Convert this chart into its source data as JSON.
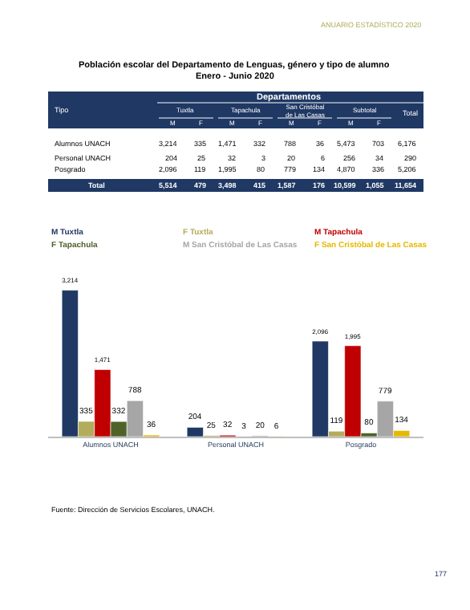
{
  "chart_data": [
    {
      "type": "other",
      "title": "Población escolar del Departamento de Lenguas, género y tipo de alumno",
      "subtitle": "Enero - Junio 2020",
      "annotations": [
        "Tipo",
        "Departamentos",
        "Tuxtla",
        "Tapachula",
        "San Cristóbal de Las Casas",
        "Subtotal",
        "Total"
      ],
      "categories": [
        "M",
        "F",
        "M",
        "F",
        "M",
        "F",
        "M",
        "F",
        null
      ],
      "y_categories": [
        "Alumnos UNACH",
        "Personal UNACH",
        "Posgrado",
        "Total"
      ],
      "cells": [
        [
          "3,214",
          "335",
          "1,471",
          "332",
          "788",
          "36",
          "5,473",
          "703",
          "6,176"
        ],
        [
          "204",
          "25",
          "32",
          "3",
          "20",
          "6",
          "256",
          "34",
          "290"
        ],
        [
          "2,096",
          "119",
          "1,995",
          "80",
          "779",
          "134",
          "4,870",
          "336",
          "5,206"
        ],
        [
          "5,514",
          "479",
          "3,498",
          "415",
          "1,587",
          "176",
          "10,599",
          "1,055",
          "11,654"
        ]
      ]
    },
    {
      "type": "bar",
      "categories": [
        "Alumnos UNACH",
        "Personal UNACH",
        "Posgrado"
      ],
      "legend": "top",
      "annotations": [
        "ANUARIO ESTADÍSTICO 2020",
        "Fuente: Dirección de Servicios Escolares, UNACH.",
        "177"
      ],
      "series": [
        {
          "name": "M Tuxtla",
          "color": "#1f3864",
          "values": [
            3214,
            204,
            2096
          ],
          "value_labels": [
            "3,214",
            "204",
            "2,096"
          ]
        },
        {
          "name": "F Tuxtla",
          "color": "#b3ac5c",
          "values": [
            335,
            25,
            119
          ],
          "value_labels": [
            "335",
            "25",
            "119"
          ]
        },
        {
          "name": "M Tapachula",
          "color": "#c00000",
          "values": [
            1471,
            32,
            1995
          ],
          "value_labels": [
            "1,471",
            "32",
            "1,995"
          ]
        },
        {
          "name": "F Tapachula",
          "color": "#4f6228",
          "values": [
            332,
            3,
            80
          ],
          "value_labels": [
            "332",
            "3",
            "80"
          ]
        },
        {
          "name": "M San Cristóbal de Las Casas",
          "color": "#a6a6a6",
          "values": [
            788,
            20,
            779
          ],
          "value_labels": [
            "788",
            "20",
            "779"
          ]
        },
        {
          "name": "F San Cristóbal de Las Casas",
          "color": "#e6b800",
          "values": [
            36,
            6,
            134
          ],
          "value_labels": [
            "36",
            "6",
            "134"
          ]
        }
      ]
    }
  ]
}
